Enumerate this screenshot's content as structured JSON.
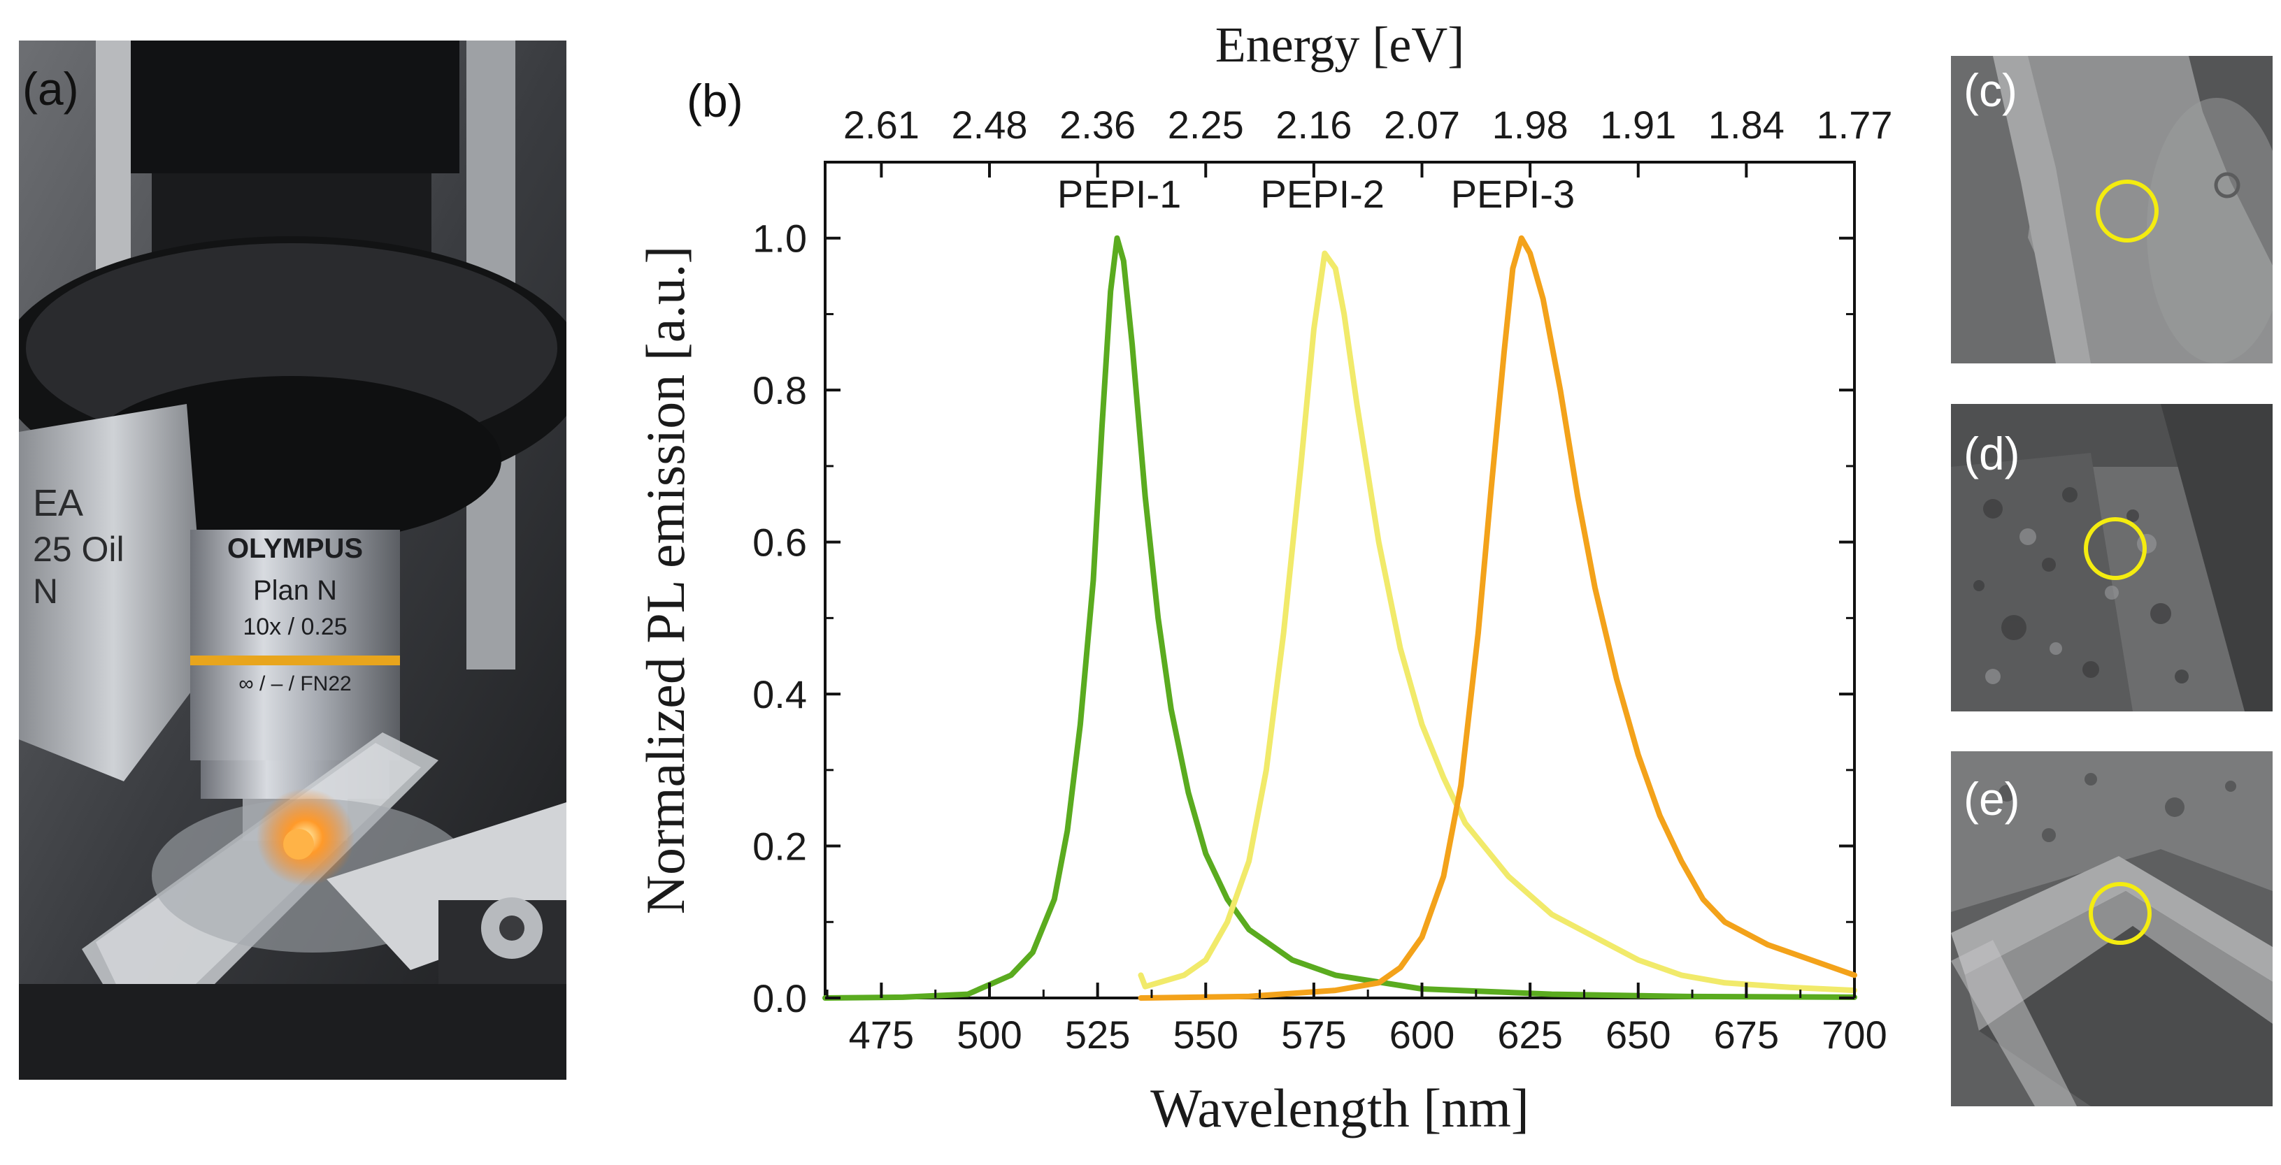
{
  "panels": {
    "a": "(a)",
    "b": "(b)",
    "c": "(c)",
    "d": "(d)",
    "e": "(e)"
  },
  "photo_a": {
    "lens_brand": "OLYMPUS",
    "lens_model": "Plan N",
    "lens_spec": "10x / 0.25",
    "lens_spec2": "∞ / – / FN22",
    "side_lens_text": "EA\n25 Oil\nN"
  },
  "colors": {
    "pepi1": "#5aab1f",
    "pepi2": "#f1ea6a",
    "pepi3": "#f3a21a",
    "marker": "#f4ec10"
  },
  "chart_data": {
    "type": "line",
    "title": "",
    "xlabel": "Wavelength [nm]",
    "ylabel": "Normalized PL emission [a.u.]",
    "top_xlabel": "Energy [eV]",
    "xlim": [
      462,
      700
    ],
    "ylim": [
      0,
      1.1
    ],
    "x_ticks": [
      475,
      500,
      525,
      550,
      575,
      600,
      625,
      650,
      675,
      700
    ],
    "y_ticks": [
      "0.0",
      "0.2",
      "0.4",
      "0.6",
      "0.8",
      "1.0"
    ],
    "top_ticks": [
      {
        "label": "2.61",
        "x": 475
      },
      {
        "label": "2.48",
        "x": 500
      },
      {
        "label": "2.36",
        "x": 525
      },
      {
        "label": "2.25",
        "x": 550
      },
      {
        "label": "2.16",
        "x": 575
      },
      {
        "label": "2.07",
        "x": 600
      },
      {
        "label": "1.98",
        "x": 625
      },
      {
        "label": "1.91",
        "x": 650
      },
      {
        "label": "1.84",
        "x": 675
      },
      {
        "label": "1.77",
        "x": 700
      }
    ],
    "series": [
      {
        "name": "PEPI-1",
        "color": "#5aab1f",
        "label_x": 530,
        "label_y": 1.04,
        "points": [
          [
            462,
            0.0
          ],
          [
            480,
            0.001
          ],
          [
            495,
            0.005
          ],
          [
            505,
            0.03
          ],
          [
            510,
            0.06
          ],
          [
            515,
            0.13
          ],
          [
            518,
            0.22
          ],
          [
            521,
            0.36
          ],
          [
            524,
            0.55
          ],
          [
            526,
            0.75
          ],
          [
            528,
            0.93
          ],
          [
            529.5,
            1.0
          ],
          [
            531,
            0.97
          ],
          [
            533,
            0.86
          ],
          [
            536,
            0.66
          ],
          [
            539,
            0.5
          ],
          [
            542,
            0.38
          ],
          [
            546,
            0.27
          ],
          [
            550,
            0.19
          ],
          [
            555,
            0.13
          ],
          [
            560,
            0.09
          ],
          [
            570,
            0.05
          ],
          [
            580,
            0.03
          ],
          [
            600,
            0.012
          ],
          [
            630,
            0.005
          ],
          [
            660,
            0.002
          ],
          [
            700,
            0.001
          ]
        ]
      },
      {
        "name": "PEPI-2",
        "color": "#f1ea6a",
        "label_x": 577,
        "label_y": 1.04,
        "points": [
          [
            535,
            0.03
          ],
          [
            536,
            0.015
          ],
          [
            545,
            0.03
          ],
          [
            550,
            0.05
          ],
          [
            555,
            0.1
          ],
          [
            560,
            0.18
          ],
          [
            564,
            0.3
          ],
          [
            568,
            0.48
          ],
          [
            572,
            0.7
          ],
          [
            575,
            0.88
          ],
          [
            577.5,
            0.98
          ],
          [
            580,
            0.96
          ],
          [
            582,
            0.9
          ],
          [
            585,
            0.78
          ],
          [
            590,
            0.6
          ],
          [
            595,
            0.46
          ],
          [
            600,
            0.36
          ],
          [
            605,
            0.29
          ],
          [
            610,
            0.23
          ],
          [
            620,
            0.16
          ],
          [
            630,
            0.11
          ],
          [
            640,
            0.08
          ],
          [
            650,
            0.05
          ],
          [
            660,
            0.03
          ],
          [
            670,
            0.02
          ],
          [
            685,
            0.014
          ],
          [
            700,
            0.01
          ]
        ]
      },
      {
        "name": "PEPI-3",
        "color": "#f3a21a",
        "label_x": 621,
        "label_y": 1.04,
        "points": [
          [
            535,
            0.0
          ],
          [
            560,
            0.002
          ],
          [
            580,
            0.01
          ],
          [
            590,
            0.02
          ],
          [
            595,
            0.04
          ],
          [
            600,
            0.08
          ],
          [
            605,
            0.16
          ],
          [
            609,
            0.28
          ],
          [
            613,
            0.48
          ],
          [
            616,
            0.67
          ],
          [
            619,
            0.85
          ],
          [
            621,
            0.96
          ],
          [
            623,
            1.0
          ],
          [
            625,
            0.98
          ],
          [
            628,
            0.92
          ],
          [
            632,
            0.8
          ],
          [
            636,
            0.66
          ],
          [
            640,
            0.54
          ],
          [
            645,
            0.42
          ],
          [
            650,
            0.32
          ],
          [
            655,
            0.24
          ],
          [
            660,
            0.18
          ],
          [
            665,
            0.13
          ],
          [
            670,
            0.1
          ],
          [
            680,
            0.07
          ],
          [
            690,
            0.05
          ],
          [
            700,
            0.03
          ]
        ]
      }
    ]
  }
}
